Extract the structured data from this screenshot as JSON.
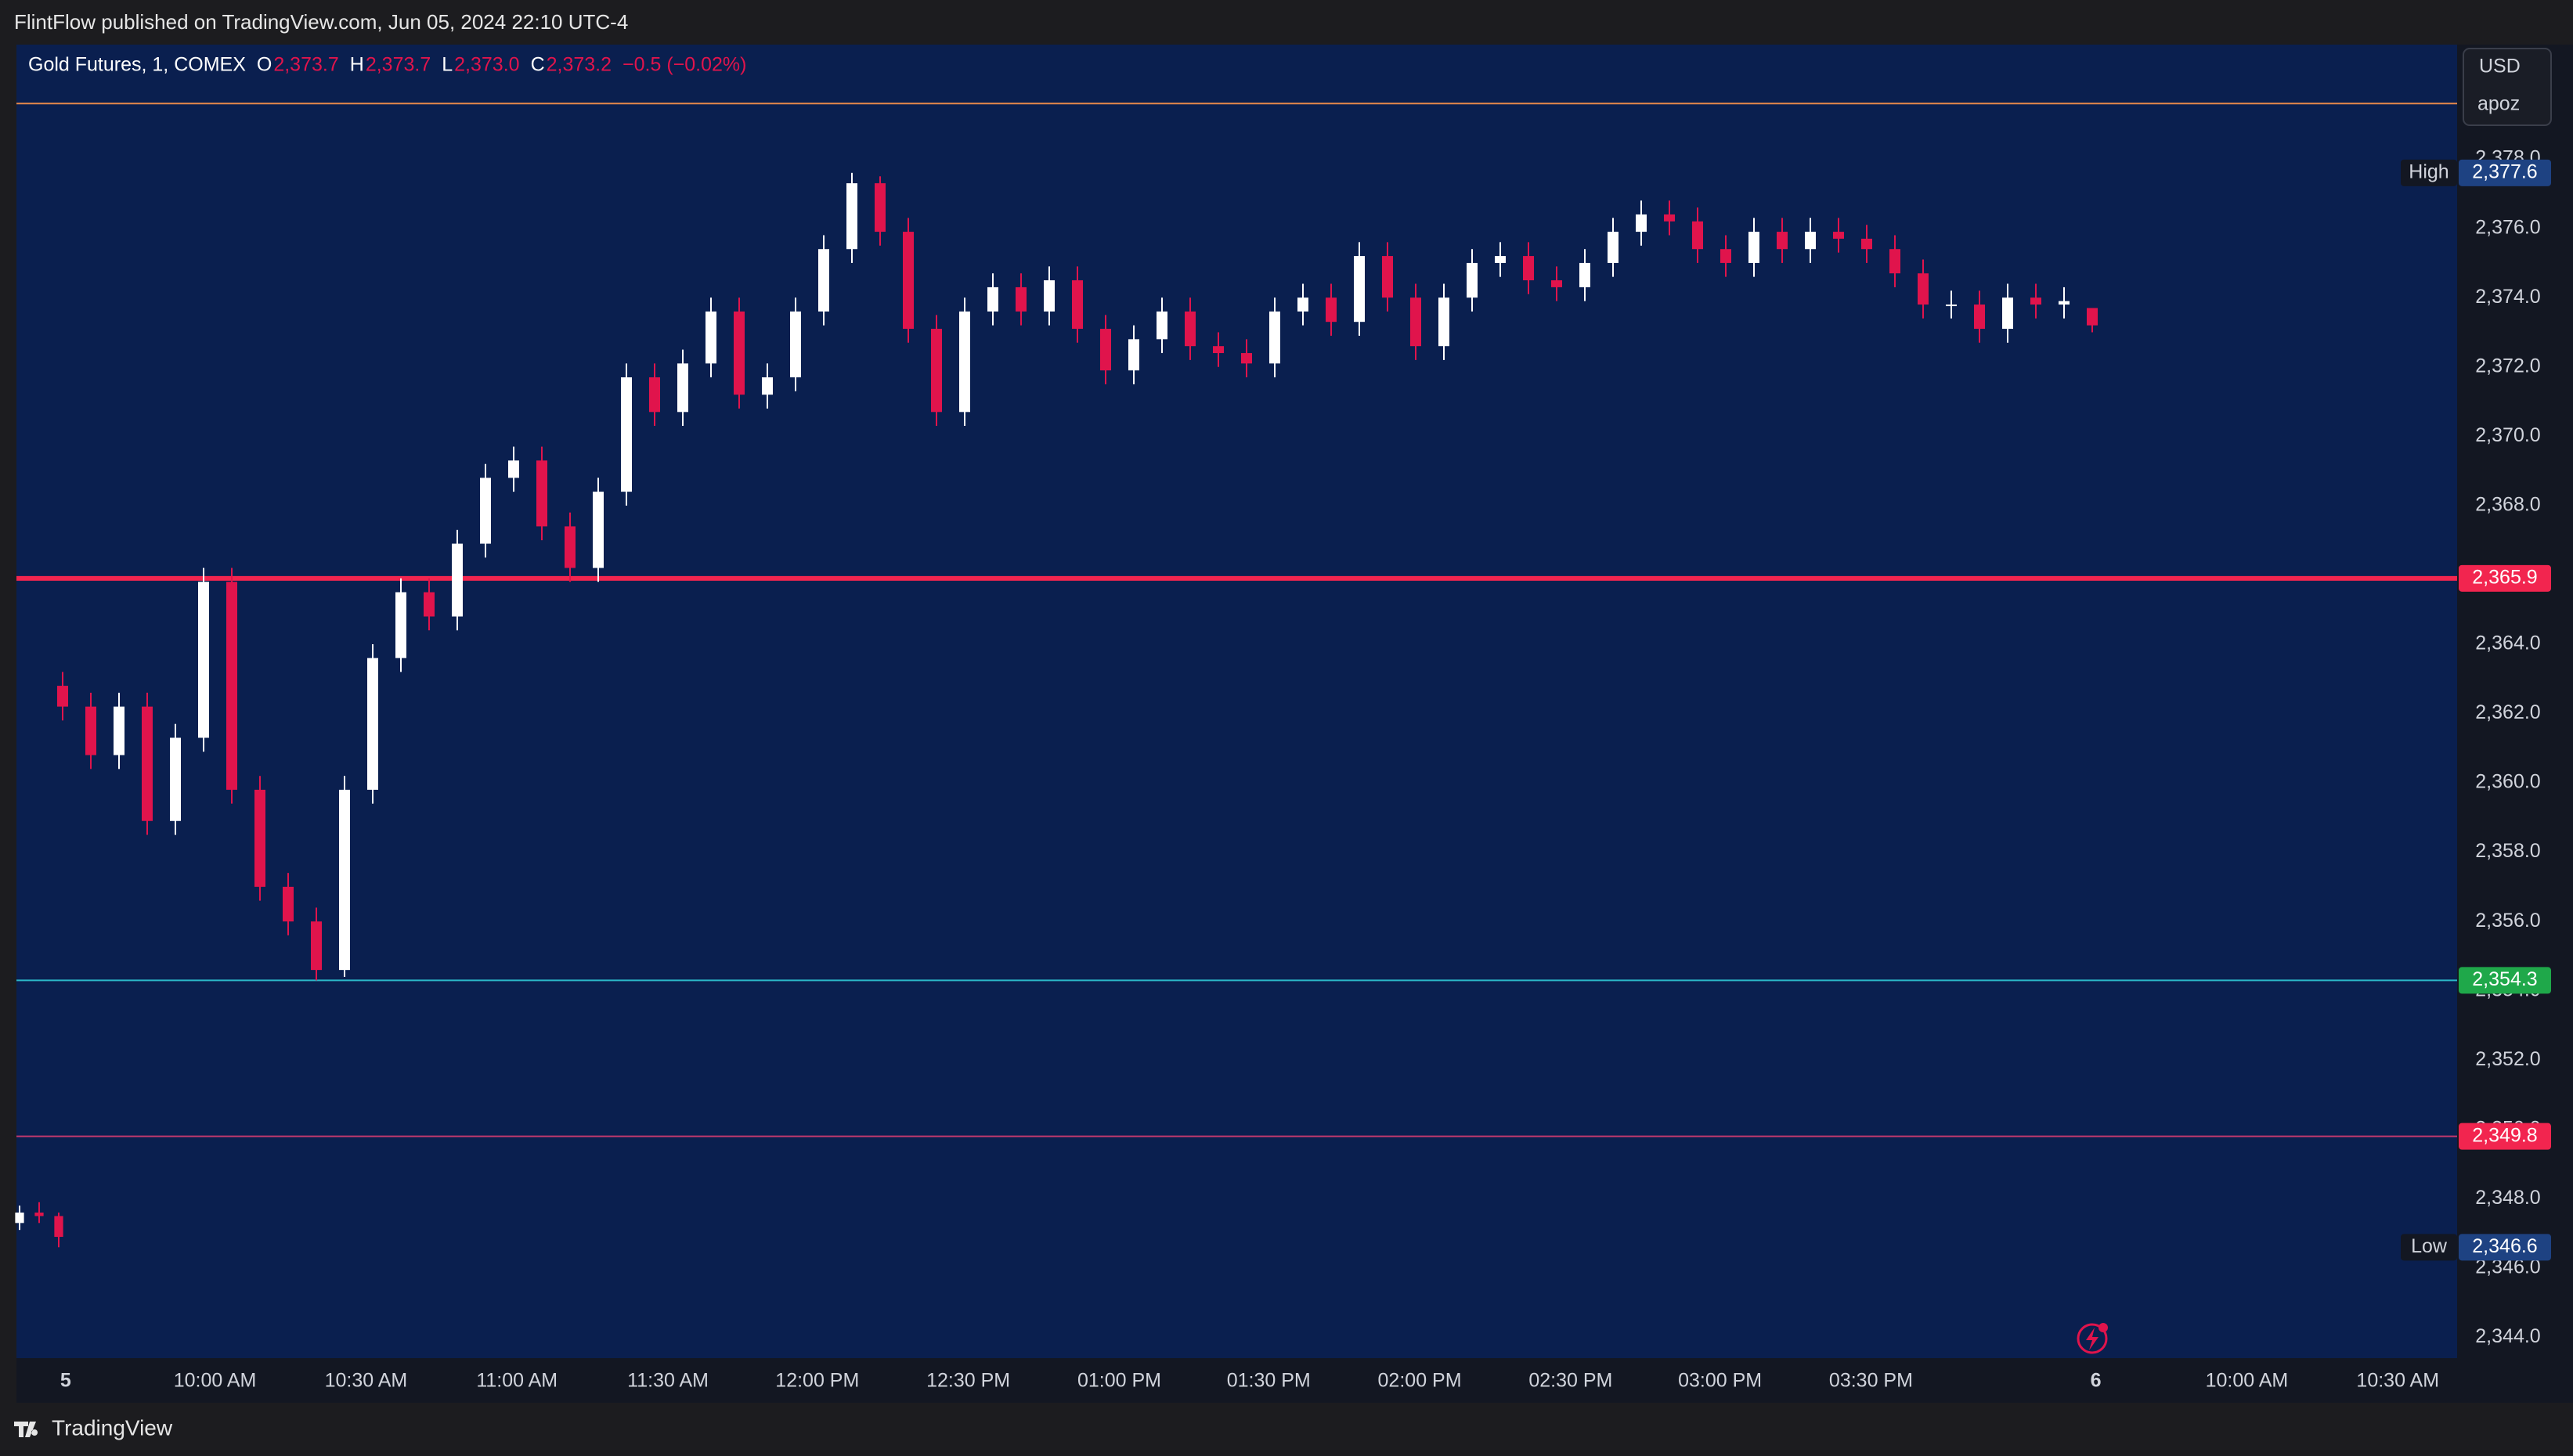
{
  "header": {
    "text": "FlintFlow published on TradingView.com, Jun 05, 2024 22:10 UTC-4"
  },
  "footer": {
    "brand": "TradingView"
  },
  "chart_data": {
    "type": "candlestick",
    "title": "Gold Futures, 1, COMEX",
    "legend": {
      "o": "O",
      "open": {
        "value": 2373.7,
        "label": "2,373.7"
      },
      "h": "H",
      "high": {
        "value": 2373.7,
        "label": "2,373.7"
      },
      "l": "L",
      "low": {
        "value": 2373.0,
        "label": "2,373.0"
      },
      "c": "C",
      "close": {
        "value": 2373.2,
        "label": "2,373.2"
      },
      "change": {
        "value": -0.5,
        "label": "−0.5 (−0.02%)"
      }
    },
    "currency": "USD",
    "scale_mode": "apoz",
    "up_color": "#ffffff",
    "down_color": "#e0144c",
    "background": "#0a1f4f",
    "categories": [
      "5",
      "10:00 AM",
      "10:30 AM",
      "11:00 AM",
      "11:30 AM",
      "12:00 PM",
      "12:30 PM",
      "01:00 PM",
      "01:30 PM",
      "02:00 PM",
      "02:30 PM",
      "03:00 PM",
      "03:30 PM",
      "6",
      "10:00 AM",
      "10:30 AM"
    ],
    "ylim": [
      2343.4,
      2381.3
    ],
    "yticks": [
      {
        "value": 2344,
        "label": "2,344.0"
      },
      {
        "value": 2346,
        "label": "2,346.0"
      },
      {
        "value": 2348,
        "label": "2,348.0"
      },
      {
        "value": 2350,
        "label": "2,350.0"
      },
      {
        "value": 2352,
        "label": "2,352.0"
      },
      {
        "value": 2354,
        "label": "2,354.0"
      },
      {
        "value": 2356,
        "label": "2,356.0"
      },
      {
        "value": 2358,
        "label": "2,358.0"
      },
      {
        "value": 2360,
        "label": "2,360.0"
      },
      {
        "value": 2362,
        "label": "2,362.0"
      },
      {
        "value": 2364,
        "label": "2,364.0"
      },
      {
        "value": 2366,
        "label": "2,366.0"
      },
      {
        "value": 2368,
        "label": "2,368.0"
      },
      {
        "value": 2370,
        "label": "2,370.0"
      },
      {
        "value": 2372,
        "label": "2,372.0"
      },
      {
        "value": 2374,
        "label": "2,374.0"
      },
      {
        "value": 2376,
        "label": "2,376.0"
      },
      {
        "value": 2378,
        "label": "2,378.0"
      }
    ],
    "series": [
      {
        "open": [
          2347.3,
          2347.6,
          2347.5
        ],
        "high": [
          2347.8,
          2347.9,
          2347.6
        ],
        "low": [
          2347.1,
          2347.3,
          2346.6
        ],
        "close": [
          2347.6,
          2347.5,
          2346.9
        ]
      },
      {
        "open": [
          2362.8,
          2362.2,
          2360.8,
          2362.2,
          2358.9,
          2361.3,
          2365.8,
          2359.8,
          2357.0,
          2356.0,
          2354.6,
          2359.8,
          2363.6,
          2365.5,
          2364.8,
          2366.9,
          2368.8,
          2369.3,
          2367.4,
          2366.2,
          2368.4,
          2371.7,
          2370.7,
          2372.1,
          2373.6,
          2371.2,
          2371.7,
          2373.6,
          2375.4,
          2377.3,
          2375.9,
          2373.1,
          2370.7,
          2373.6,
          2374.3,
          2373.6,
          2374.5,
          2373.1,
          2371.9,
          2372.8,
          2373.6,
          2372.6,
          2372.4,
          2372.1,
          2373.6,
          2374.0,
          2373.3,
          2375.2,
          2374.0,
          2372.6,
          2374.0,
          2375.0,
          2375.2,
          2374.5,
          2374.3,
          2375.0,
          2375.9,
          2376.4,
          2376.2,
          2375.4,
          2375.0,
          2375.9,
          2375.4,
          2375.9,
          2375.7,
          2375.4,
          2374.7,
          2373.8,
          2373.8,
          2373.1,
          2374.0,
          2373.8,
          2373.7
        ],
        "high": [
          2363.2,
          2362.6,
          2362.6,
          2362.6,
          2361.7,
          2366.2,
          2366.2,
          2360.2,
          2357.4,
          2356.4,
          2360.2,
          2364.0,
          2365.9,
          2365.9,
          2367.3,
          2369.2,
          2369.7,
          2369.7,
          2367.8,
          2368.8,
          2372.1,
          2372.1,
          2372.5,
          2374.0,
          2374.0,
          2372.1,
          2374.0,
          2375.8,
          2377.6,
          2377.5,
          2376.3,
          2373.5,
          2374.0,
          2374.7,
          2374.7,
          2374.9,
          2374.9,
          2373.5,
          2373.2,
          2374.0,
          2374.0,
          2373.0,
          2372.8,
          2374.0,
          2374.4,
          2374.4,
          2375.6,
          2375.6,
          2374.4,
          2374.4,
          2375.4,
          2375.6,
          2375.6,
          2374.9,
          2375.4,
          2376.3,
          2376.8,
          2376.8,
          2376.6,
          2375.8,
          2376.3,
          2376.3,
          2376.3,
          2376.3,
          2376.1,
          2375.8,
          2375.1,
          2374.2,
          2374.2,
          2374.4,
          2374.4,
          2374.3,
          2373.7
        ],
        "low": [
          2361.8,
          2360.4,
          2360.4,
          2358.5,
          2358.5,
          2360.9,
          2359.4,
          2356.6,
          2355.6,
          2354.3,
          2354.4,
          2359.4,
          2363.2,
          2364.4,
          2364.4,
          2366.5,
          2368.4,
          2367.0,
          2365.8,
          2365.8,
          2368.0,
          2370.3,
          2370.3,
          2371.7,
          2370.8,
          2370.8,
          2371.3,
          2373.2,
          2375.0,
          2375.5,
          2372.7,
          2370.3,
          2370.3,
          2373.2,
          2373.2,
          2373.2,
          2372.7,
          2371.5,
          2371.5,
          2372.4,
          2372.2,
          2372.0,
          2371.7,
          2371.7,
          2373.2,
          2372.9,
          2372.9,
          2373.6,
          2372.2,
          2372.2,
          2373.6,
          2374.6,
          2374.1,
          2373.9,
          2373.9,
          2374.6,
          2375.5,
          2375.8,
          2375.0,
          2374.6,
          2374.6,
          2375.0,
          2375.0,
          2375.3,
          2375.0,
          2374.3,
          2373.4,
          2373.4,
          2372.7,
          2372.7,
          2373.4,
          2373.4,
          2373.0
        ],
        "close": [
          2362.2,
          2360.8,
          2362.2,
          2358.9,
          2361.3,
          2365.8,
          2359.8,
          2357.0,
          2356.0,
          2354.6,
          2359.8,
          2363.6,
          2365.5,
          2364.8,
          2366.9,
          2368.8,
          2369.3,
          2367.4,
          2366.2,
          2368.4,
          2371.7,
          2370.7,
          2372.1,
          2373.6,
          2371.2,
          2371.7,
          2373.6,
          2375.4,
          2377.3,
          2375.9,
          2373.1,
          2370.7,
          2373.6,
          2374.3,
          2373.6,
          2374.5,
          2373.1,
          2371.9,
          2372.8,
          2373.6,
          2372.6,
          2372.4,
          2372.1,
          2373.6,
          2374.0,
          2373.3,
          2375.2,
          2374.0,
          2372.6,
          2374.0,
          2375.0,
          2375.2,
          2374.5,
          2374.3,
          2375.0,
          2375.9,
          2376.4,
          2376.2,
          2375.4,
          2375.0,
          2375.9,
          2375.4,
          2375.9,
          2375.7,
          2375.4,
          2374.7,
          2373.8,
          2373.8,
          2373.1,
          2374.0,
          2373.8,
          2373.9,
          2373.2
        ]
      }
    ],
    "levels": [
      {
        "value": 2379.6,
        "color": "#e8894a",
        "width": 2
      },
      {
        "value": 2365.9,
        "color": "#f2254f",
        "width": 6,
        "value_label": "2,365.9"
      },
      {
        "value": 2354.3,
        "color": "#2bb8c8",
        "width": 2,
        "value_label": "2,354.3",
        "label_color": "#1fa84a"
      },
      {
        "value": 2349.8,
        "color": "#c2386e",
        "width": 2,
        "value_label": "2,349.8",
        "label_color": "#f2254f"
      }
    ],
    "markers": [
      {
        "name": "High",
        "value": 2377.6,
        "value_label": "2,377.6",
        "color": "#1e4282"
      },
      {
        "name": "Low",
        "value": 2346.6,
        "value_label": "2,346.6",
        "color": "#1e4282"
      }
    ]
  }
}
